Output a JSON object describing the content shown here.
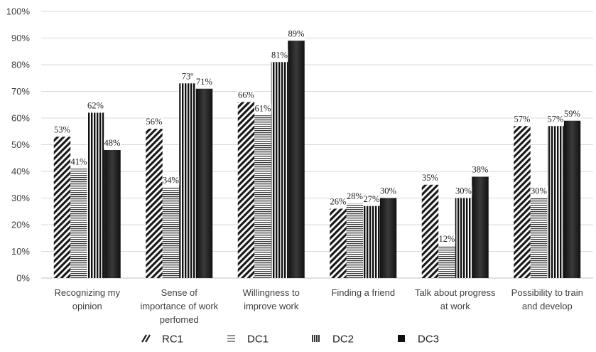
{
  "chart_data": {
    "type": "bar",
    "title": "",
    "xlabel": "",
    "ylabel": "",
    "ylim": [
      0,
      100
    ],
    "y_ticks": [
      "0%",
      "10%",
      "20%",
      "30%",
      "40%",
      "50%",
      "60%",
      "70%",
      "80%",
      "90%",
      "100%"
    ],
    "grid": true,
    "legend_position": "bottom",
    "categories": [
      [
        "Recognizing my",
        "opinion"
      ],
      [
        "Sense of",
        "importance of work",
        "perfomed"
      ],
      [
        "Willingness to",
        "improve work"
      ],
      [
        "Finding a friend"
      ],
      [
        "Talk about progress",
        "at work"
      ],
      [
        "Possibility to train",
        "and develop"
      ]
    ],
    "series": [
      {
        "name": "RC1",
        "pattern": "diagonal",
        "values": [
          53,
          56,
          66,
          26,
          35,
          57
        ],
        "labels": [
          "53%",
          "56%",
          "66%",
          "26%",
          "35%",
          "57%"
        ]
      },
      {
        "name": "DC1",
        "pattern": "horizontal",
        "values": [
          41,
          34,
          61,
          28,
          12,
          30
        ],
        "labels": [
          "41%",
          "34%",
          "61%",
          "28%",
          "12%",
          "30%"
        ]
      },
      {
        "name": "DC2",
        "pattern": "vertical",
        "values": [
          62,
          73,
          81,
          27,
          30,
          57
        ],
        "labels": [
          "62%",
          "73º",
          "81%",
          "27%",
          "30%",
          "57%"
        ]
      },
      {
        "name": "DC3",
        "pattern": "solid",
        "values": [
          48,
          71,
          89,
          30,
          38,
          59
        ],
        "labels": [
          "48%",
          "71%",
          "89%",
          "30%",
          "38%",
          "59%"
        ]
      }
    ]
  }
}
